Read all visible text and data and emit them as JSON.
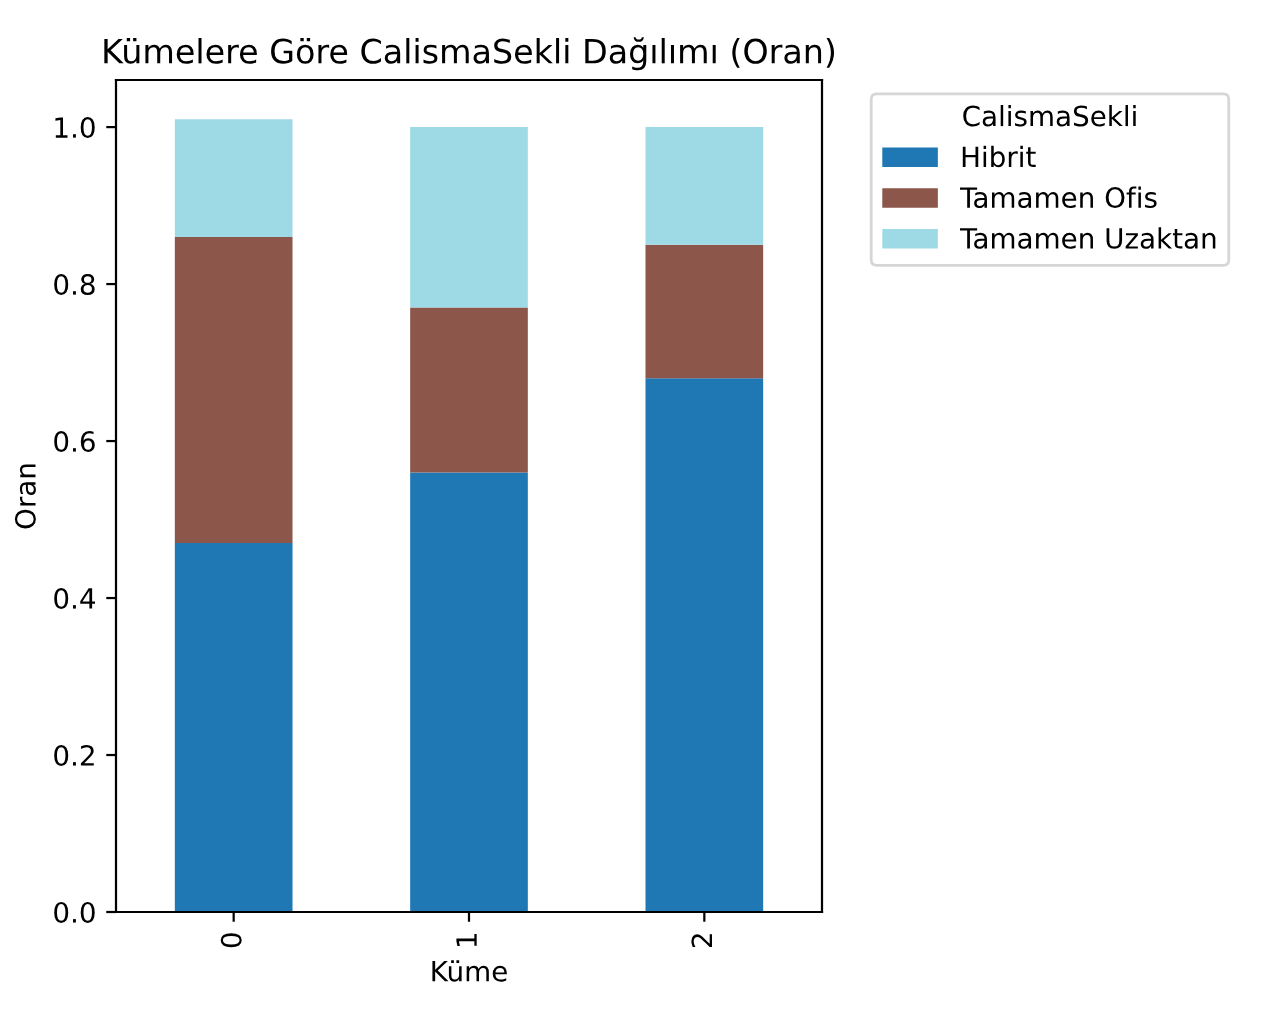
{
  "chart_data": {
    "type": "bar",
    "stacked": true,
    "title": "Kümelere Göre CalismaSekli Dağılımı (Oran)",
    "xlabel": "Küme",
    "ylabel": "Oran",
    "legend_title": "CalismaSekli",
    "legend": "top right",
    "categories": [
      "0",
      "1",
      "2"
    ],
    "series": [
      {
        "name": "Hibrit",
        "color": "#1f77b4",
        "values": [
          0.47,
          0.56,
          0.68
        ]
      },
      {
        "name": "Tamamen Ofis",
        "color": "#8c564b",
        "values": [
          0.39,
          0.21,
          0.17
        ]
      },
      {
        "name": "Tamamen Uzaktan",
        "color": "#9edae5",
        "values": [
          0.15,
          0.23,
          0.15
        ]
      }
    ],
    "ylim": [
      0,
      1.06
    ],
    "yticks": [
      {
        "value": 0,
        "label": "0.0"
      },
      {
        "value": 0.2,
        "label": "0.2"
      },
      {
        "value": 0.4,
        "label": "0.4"
      },
      {
        "value": 0.6,
        "label": "0.6"
      },
      {
        "value": 0.8,
        "label": "0.8"
      },
      {
        "value": 1.0,
        "label": "1.0"
      }
    ],
    "grid": false
  }
}
